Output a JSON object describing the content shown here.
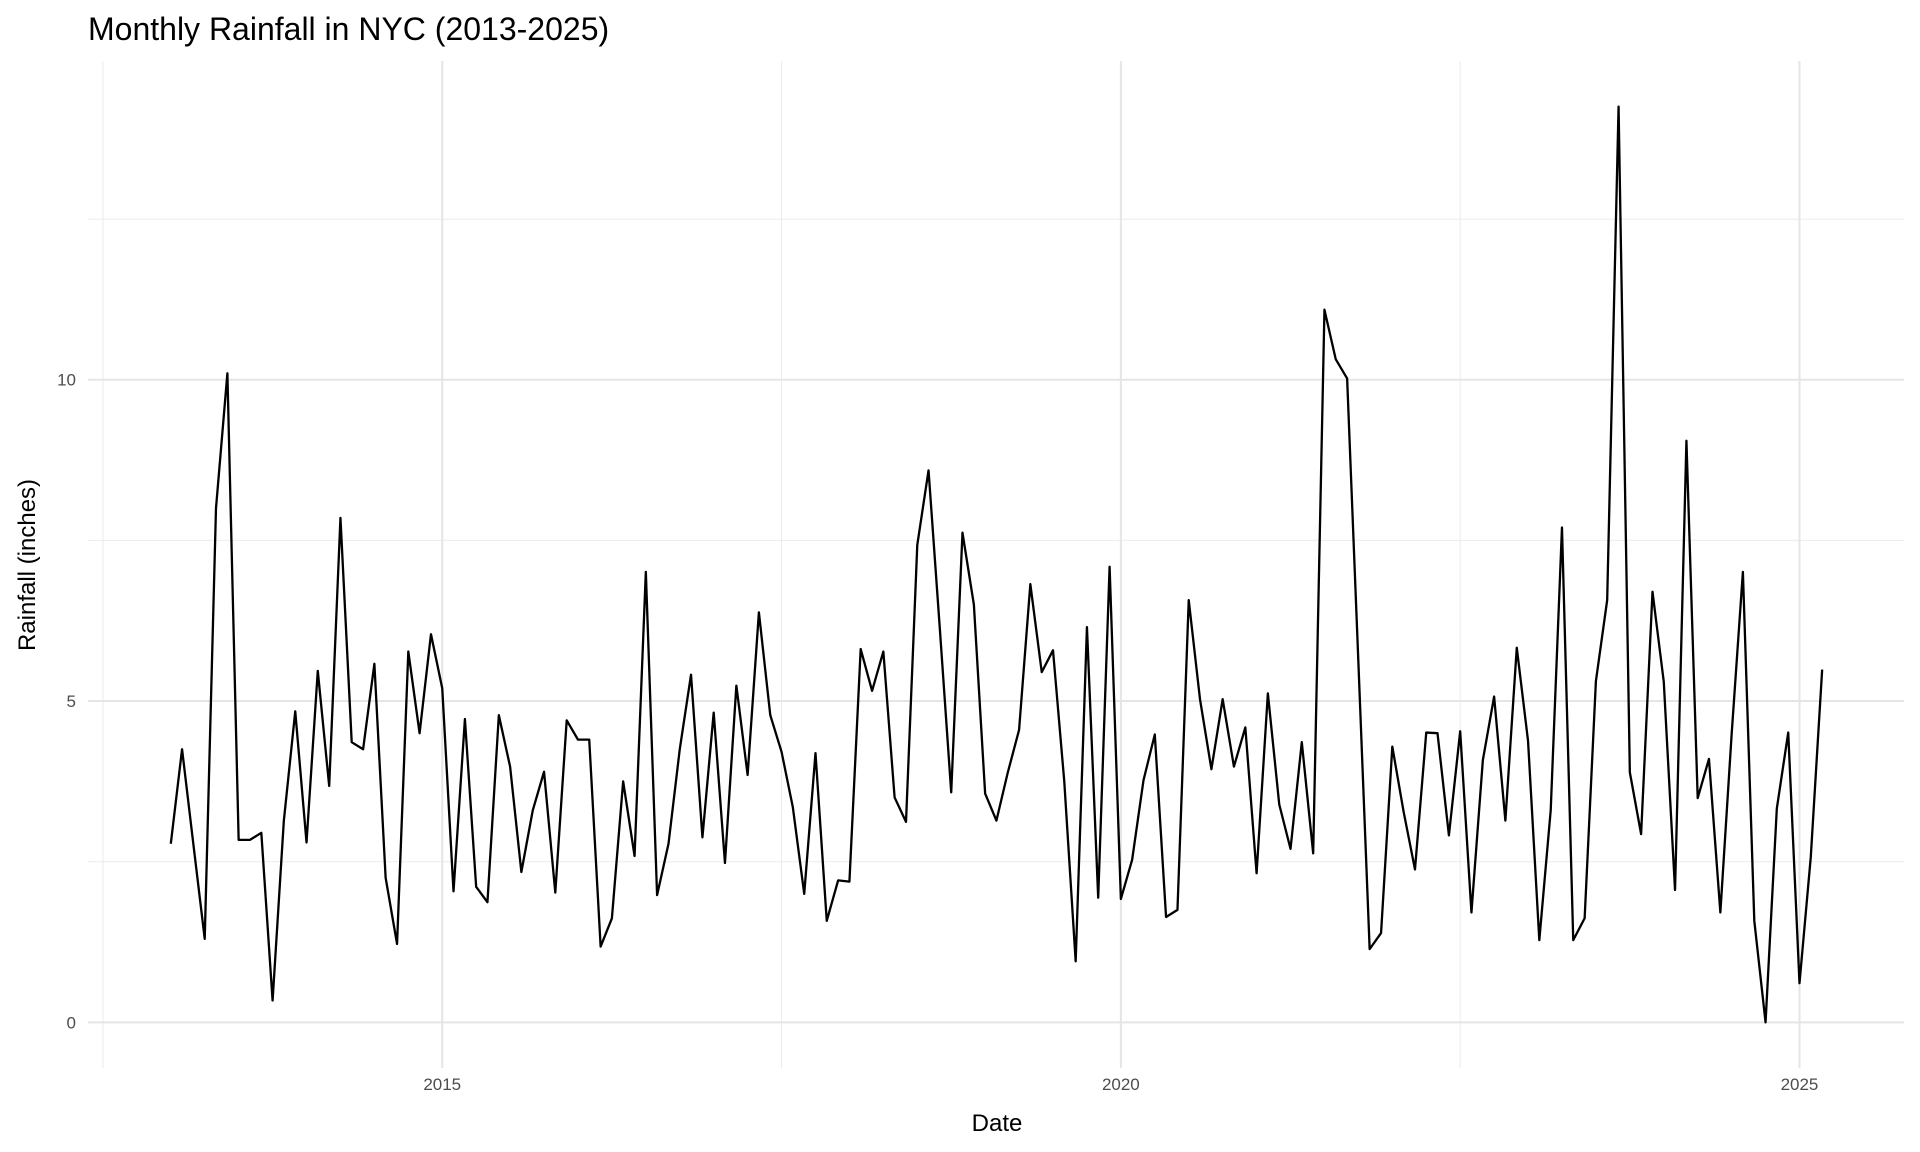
{
  "chart_data": {
    "type": "line",
    "title": "Monthly Rainfall in NYC (2013-2025)",
    "x_label": "Date",
    "y_label": "Rainfall (inches)",
    "color": "#000000",
    "grid": true,
    "xlim": [
      2012.39,
      2025.77
    ],
    "ylim": [
      -0.71,
      14.96
    ],
    "xticks": [
      2015,
      2020,
      2025
    ],
    "yticks": [
      0,
      5,
      10
    ],
    "xminor": [
      2012.5,
      2017.5,
      2022.5
    ],
    "yminor": [
      2.5,
      7.5,
      12.5
    ],
    "x": [
      2013,
      2013.083,
      2013.167,
      2013.25,
      2013.333,
      2013.417,
      2013.5,
      2013.583,
      2013.667,
      2013.75,
      2013.833,
      2013.917,
      2014,
      2014.083,
      2014.167,
      2014.25,
      2014.333,
      2014.417,
      2014.5,
      2014.583,
      2014.667,
      2014.75,
      2014.833,
      2014.917,
      2015,
      2015.083,
      2015.167,
      2015.25,
      2015.333,
      2015.417,
      2015.5,
      2015.583,
      2015.667,
      2015.75,
      2015.833,
      2015.917,
      2016,
      2016.083,
      2016.167,
      2016.25,
      2016.333,
      2016.417,
      2016.5,
      2016.583,
      2016.667,
      2016.75,
      2016.833,
      2016.917,
      2017,
      2017.083,
      2017.167,
      2017.25,
      2017.333,
      2017.417,
      2017.5,
      2017.583,
      2017.667,
      2017.75,
      2017.833,
      2017.917,
      2018,
      2018.083,
      2018.167,
      2018.25,
      2018.333,
      2018.417,
      2018.5,
      2018.583,
      2018.667,
      2018.75,
      2018.833,
      2018.917,
      2019,
      2019.083,
      2019.167,
      2019.25,
      2019.333,
      2019.417,
      2019.5,
      2019.583,
      2019.667,
      2019.75,
      2019.833,
      2019.917,
      2020,
      2020.083,
      2020.167,
      2020.25,
      2020.333,
      2020.417,
      2020.5,
      2020.583,
      2020.667,
      2020.75,
      2020.833,
      2020.917,
      2021,
      2021.083,
      2021.167,
      2021.25,
      2021.333,
      2021.417,
      2021.5,
      2021.583,
      2021.667,
      2021.75,
      2021.833,
      2021.917,
      2022,
      2022.083,
      2022.167,
      2022.25,
      2022.333,
      2022.417,
      2022.5,
      2022.583,
      2022.667,
      2022.75,
      2022.833,
      2022.917,
      2023,
      2023.083,
      2023.167,
      2023.25,
      2023.333,
      2023.417,
      2023.5,
      2023.583,
      2023.667,
      2023.75,
      2023.833,
      2023.917,
      2024,
      2024.083,
      2024.167,
      2024.25,
      2024.333,
      2024.417,
      2024.5,
      2024.583,
      2024.667,
      2024.75,
      2024.833,
      2024.917,
      2025,
      2025.083,
      2025.167
    ],
    "values": [
      2.78,
      4.25,
      2.76,
      1.3,
      8.0,
      10.1,
      2.84,
      2.84,
      2.95,
      0.34,
      3.14,
      4.84,
      2.8,
      5.47,
      3.68,
      7.85,
      4.36,
      4.25,
      5.58,
      2.25,
      1.22,
      5.77,
      4.5,
      6.04,
      5.2,
      2.04,
      4.72,
      2.11,
      1.87,
      4.78,
      3.98,
      2.34,
      3.3,
      3.9,
      2.02,
      4.7,
      4.4,
      4.4,
      1.18,
      1.62,
      3.75,
      2.59,
      7.01,
      1.98,
      2.78,
      4.25,
      5.41,
      2.88,
      4.82,
      2.48,
      5.24,
      3.85,
      6.38,
      4.78,
      4.21,
      3.35,
      2.0,
      4.19,
      1.58,
      2.21,
      2.19,
      5.81,
      5.16,
      5.77,
      3.5,
      3.12,
      7.43,
      8.59,
      6.1,
      3.58,
      7.62,
      6.5,
      3.56,
      3.14,
      3.89,
      4.55,
      6.82,
      5.45,
      5.79,
      3.75,
      0.95,
      6.15,
      1.94,
      7.09,
      1.92,
      2.53,
      3.77,
      4.48,
      1.64,
      1.75,
      6.57,
      5.03,
      3.94,
      5.03,
      3.98,
      4.59,
      2.32,
      5.12,
      3.39,
      2.7,
      4.36,
      2.63,
      11.09,
      10.32,
      10.02,
      5.6,
      1.14,
      1.39,
      4.29,
      3.28,
      2.38,
      4.51,
      4.5,
      2.91,
      4.53,
      1.71,
      4.08,
      5.07,
      3.14,
      5.83,
      4.38,
      1.28,
      3.3,
      7.7,
      1.28,
      1.62,
      5.31,
      6.57,
      14.25,
      3.89,
      2.93,
      6.7,
      5.3,
      2.06,
      9.05,
      3.49,
      4.1,
      1.71,
      4.48,
      7.01,
      1.58,
      0,
      3.33,
      4.51,
      0.61,
      2.57,
      5.49
    ]
  }
}
